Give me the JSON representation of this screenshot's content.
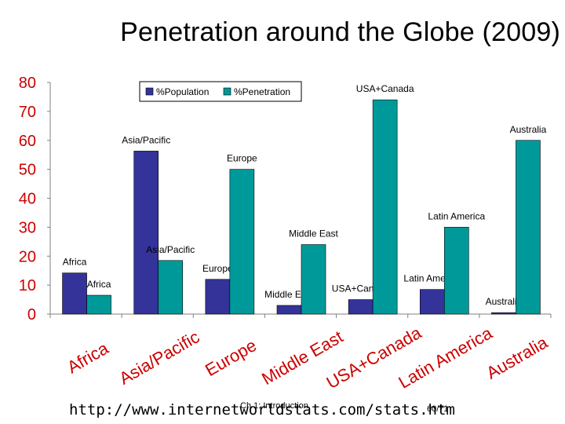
{
  "slide": {
    "title": "Penetration around the Globe (2009)",
    "url": "http://www.internetworldstats.com/stats.htm",
    "chapter": "Ch 1: Introduction",
    "page": "60/71"
  },
  "colors": {
    "population": "#333399",
    "penetration": "#009999",
    "tick_labels": "#cc0000"
  },
  "chart_data": {
    "type": "bar",
    "title": "",
    "xlabel": "",
    "ylabel": "",
    "ylim": [
      0,
      80
    ],
    "yticks": [
      0,
      10,
      20,
      30,
      40,
      50,
      60,
      70,
      80
    ],
    "grid": false,
    "legend": "top-center",
    "categories": [
      "Africa",
      "Asia/Pacific",
      "Europe",
      "Middle East",
      "USA+Canada",
      "Latin America",
      "Australia"
    ],
    "series": [
      {
        "name": "%Population",
        "values": [
          14.2,
          56.3,
          12.0,
          3.0,
          5.0,
          8.5,
          0.5
        ]
      },
      {
        "name": "%Penetration",
        "values": [
          6.5,
          18.5,
          50.0,
          24.0,
          74.0,
          30.0,
          60.0
        ]
      }
    ]
  }
}
